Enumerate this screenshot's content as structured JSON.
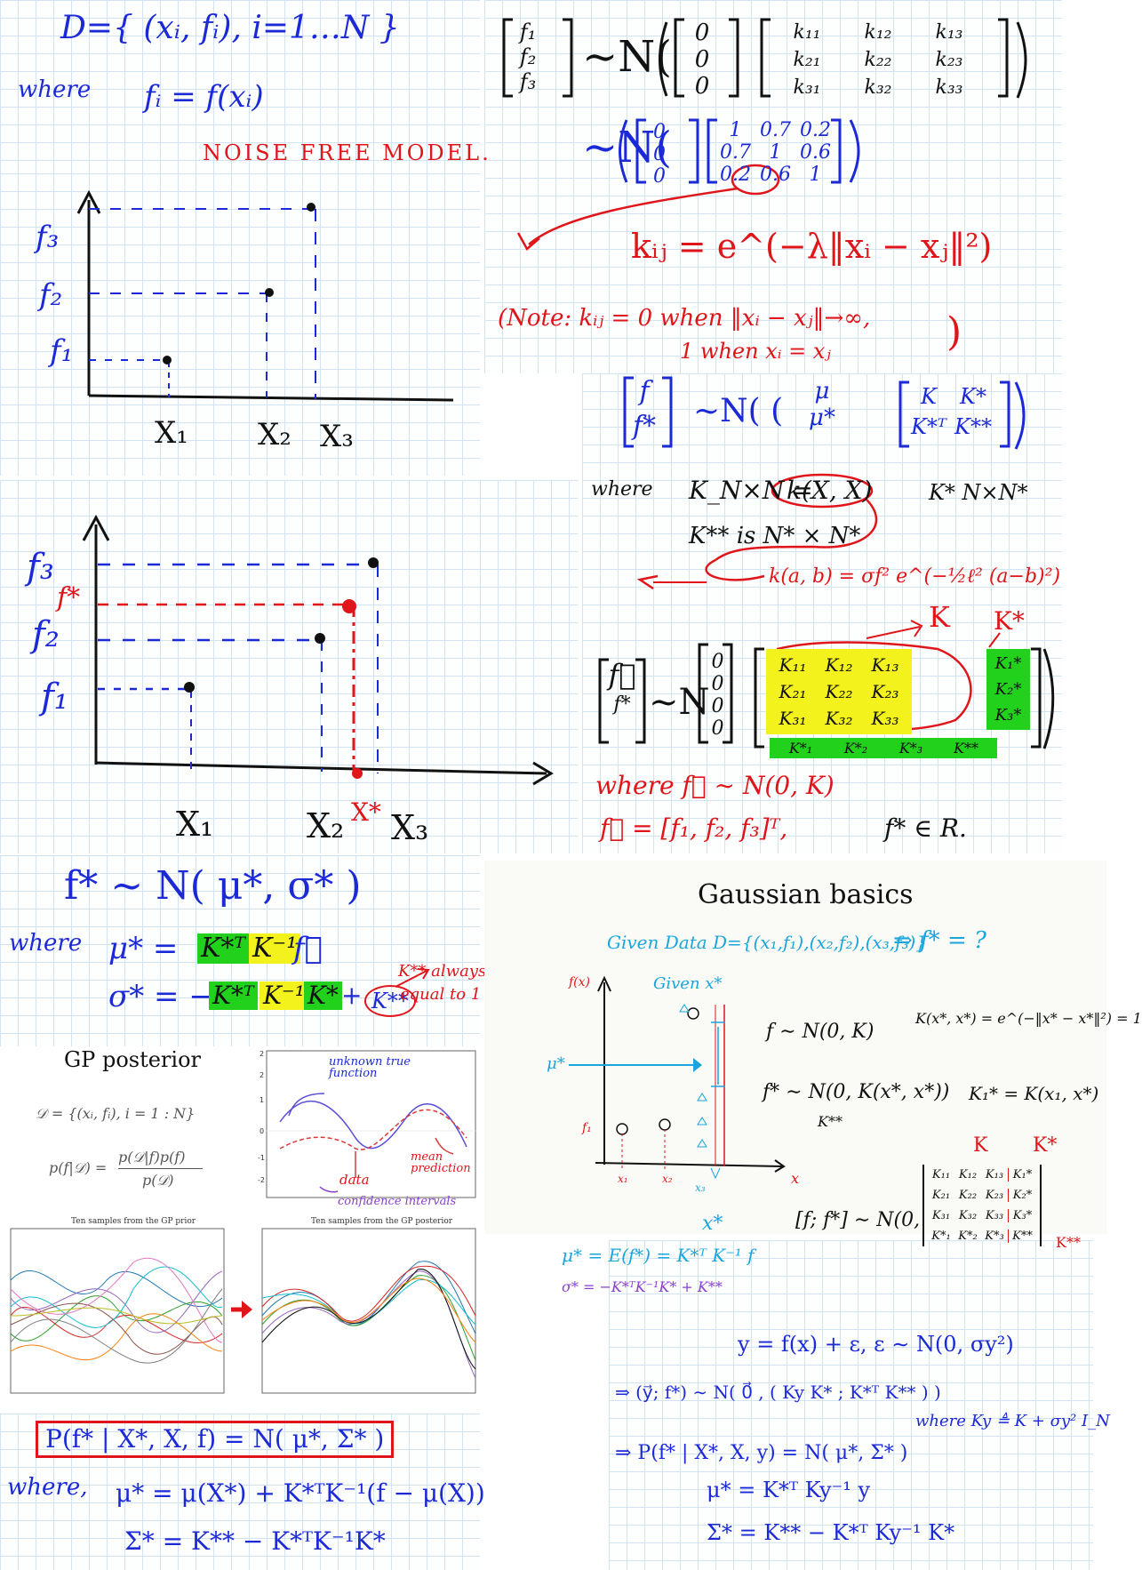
{
  "panel1": {
    "dataset": "D={ (xᵢ, fᵢ), i=1…N }",
    "where_label": "where",
    "f_def": "fᵢ = f(xᵢ)",
    "noise_free": "NOISE FREE MODEL."
  },
  "plot1": {
    "y_labels": [
      "f₃",
      "f₂",
      "f₁"
    ],
    "x_labels": [
      "X₁",
      "X₂",
      "X₃"
    ]
  },
  "plot2": {
    "y_labels": [
      "f₃",
      "f*",
      "f₂",
      "f₁"
    ],
    "x_labels": [
      "X₁",
      "X₂",
      "X*",
      "X₃"
    ]
  },
  "topright": {
    "vec_entries": [
      "f₁",
      "f₂",
      "f₃"
    ],
    "dist": "∼N(",
    "mean_entries": [
      "0",
      "0",
      "0"
    ],
    "k_entries": [
      "k₁₁",
      "k₁₂",
      "k₁₃",
      "k₂₁",
      "k₂₂",
      "k₂₃",
      "k₃₁",
      "k₃₂",
      "k₃₃"
    ],
    "dist2": "∼N(",
    "num_entries": [
      "1",
      "0.7",
      "0.2",
      "0.7",
      "1",
      "0.6",
      "0.2",
      "0.6",
      "1"
    ],
    "kernel": "kᵢⱼ = e^(−λ‖xᵢ − xⱼ‖²)",
    "note_line1": "(Note:  kᵢⱼ = 0  when ‖xᵢ − xⱼ‖→∞,",
    "note_line2": "1  when  xᵢ = xⱼ",
    "note_close": ")"
  },
  "joint": {
    "vec": [
      "f",
      "f*"
    ],
    "dist": "∼N( (",
    "mean": [
      "μ",
      "μ*"
    ],
    "block": [
      "K",
      "K*",
      "K*ᵀ",
      "K**"
    ],
    "where_label": "where",
    "knxn": "K_N×N =",
    "kxx": "k(X, X)",
    "kstar_dim": "K*  N×N*",
    "kss": "K**  is  N* × N*",
    "rbf": "k(a, b) = σf² e^(−½ℓ² (a−b)²)"
  },
  "block": {
    "vec": [
      "f⃗",
      "f*"
    ],
    "dist": "∼N",
    "mean_entries": [
      "0",
      "0",
      "0",
      "0"
    ],
    "label_K": "K",
    "label_Ks": "K*",
    "k_entries": [
      "K₁₁",
      "K₁₂",
      "K₁₃",
      "K₂₁",
      "K₂₂",
      "K₂₃",
      "K₃₁",
      "K₃₂",
      "K₃₃"
    ],
    "ks_col": [
      "K₁*",
      "K₂*",
      "K₃*"
    ],
    "ks_row": [
      "K*₁",
      "K*₂",
      "K*₃",
      "K**"
    ],
    "where_line": "where   f⃗ ∼ N(0, K)",
    "fvec_line": "f⃗ = [f₁, f₂, f₃]ᵀ,",
    "fstar_real": "f* ∈ R."
  },
  "posterior": {
    "main": "f* ∼ N( μ*, σ* )",
    "where_label": "where",
    "mu_lhs": "μ* =",
    "mu_a": "K*ᵀ",
    "mu_b": "K⁻¹",
    "mu_c": "f⃗",
    "sigma_lhs": "σ* = −",
    "sigma_a": "K*ᵀ",
    "sigma_b": "K⁻¹",
    "sigma_c": "K*",
    "sigma_plus": "+",
    "kss": "K**",
    "note_l1": "K** always",
    "note_l2": "equal to 1"
  },
  "gp": {
    "title": "GP posterior",
    "dataset": "𝒟 = {(xᵢ, fᵢ), i = 1 : N}",
    "bayes_lhs": "p(f|𝒟) =",
    "bayes_num": "p(𝒟|f)p(f)",
    "bayes_den": "p(𝒟)",
    "ann_true": "unknown true function",
    "ann_mean": "mean prediction",
    "ann_data": "data",
    "ann_ci": "confidence intervals",
    "prior_title": "Ten samples from the GP prior",
    "post_title": "Ten samples from the GP posterior"
  },
  "bottom": {
    "boxed": "P(f* | X*, X, f)  =  N( μ*, Σ* )",
    "where_label": "where,",
    "mu_line": "μ* = μ(X*) + K*ᵀK⁻¹(f − μ(X))",
    "sigma_line": "Σ* = K** − K*ᵀK⁻¹K*"
  },
  "basics": {
    "title": "Gaussian basics",
    "given": "Given Data  D={(x₁,f₁),(x₂,f₂),(x₃,f₃)}",
    "implies": "⇒ f* = ?",
    "given_x": "Given x*",
    "f_axis": "f(x)",
    "mu_lbl": "μ*",
    "f1_lbl": "f₁",
    "x_labels": [
      "x₁",
      "x₂",
      "x₃"
    ],
    "x_axis": "x",
    "x_star": "x*",
    "fn": "f ∼ N(0, K)",
    "kernel": "K(x*, x*) = e^(−‖x* − x*‖²) = 1",
    "fstar": "f* ∼ N(0, K(x*, x*))",
    "kss": "K**",
    "k1s": "K₁* = K(x₁, x*)",
    "lbl_K": "K",
    "lbl_Ks": "K*",
    "lbl_Kss": "K**",
    "joint_lhs": "[f; f*] ∼ N(0,",
    "mat": [
      "K₁₁",
      "K₁₂",
      "K₁₃",
      "K₁*",
      "K₂₁",
      "K₂₂",
      "K₂₃",
      "K₂*",
      "K₃₁",
      "K₃₂",
      "K₃₃",
      "K₃*",
      "K*₁",
      "K*₂",
      "K*₃",
      "K**"
    ],
    "mu_eq": "μ* = E(f*) = K*ᵀ K⁻¹ f",
    "sig_eq": "σ* = −K*ᵀK⁻¹K* + K**"
  },
  "noisy": {
    "model": "y = f(x) + ε,    ε ∼ N(0, σy²)",
    "joint": "⇒  (y⃗; f*) ∼ N( 0⃗ , ( Ky  K* ; K*ᵀ  K** ) )",
    "where_ky": "where  Ky ≜ K + σy² I_N",
    "post": "⇒  P(f* | X*, X, y) = N( μ*, Σ* )",
    "mu": "μ* = K*ᵀ Ky⁻¹ y",
    "sigma": "Σ* = K** − K*ᵀ Ky⁻¹ K*"
  }
}
